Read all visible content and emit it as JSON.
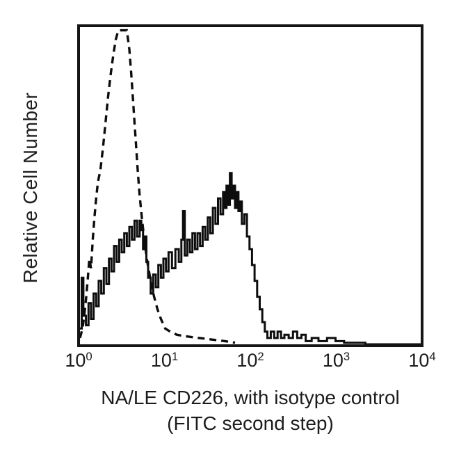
{
  "figure": {
    "y_axis_label": "Relative Cell Number",
    "x_axis_title_line1": "NA/LE CD226, with isotype control",
    "x_axis_title_line2": "(FITC second step)",
    "colors": {
      "curve": "#0d0d0d",
      "box_border": "#151515",
      "background": "#ffffff",
      "text": "#1c1c1c"
    }
  },
  "chart_data": {
    "type": "line",
    "subtype": "flow-cytometry-histogram-overlay",
    "title": "",
    "xlabel": "NA/LE CD226, with isotype control (FITC second step)",
    "ylabel": "Relative Cell Number",
    "x_scale": "log10",
    "x_range": [
      1,
      10000
    ],
    "ylim": [
      0,
      100
    ],
    "y_units": "relative cell number (percent of plot height, no ticks shown)",
    "grid": false,
    "legend": "none",
    "x_ticks": [
      {
        "base": "10",
        "exp": "0"
      },
      {
        "base": "10",
        "exp": "1"
      },
      {
        "base": "10",
        "exp": "2"
      },
      {
        "base": "10",
        "exp": "3"
      },
      {
        "base": "10",
        "exp": "4"
      }
    ],
    "series": [
      {
        "name": "isotype control",
        "line_style": "dashed",
        "render": "polyline",
        "peak_x_approx": 3,
        "points_log10x_ypct": [
          [
            0.0,
            2
          ],
          [
            0.03,
            5
          ],
          [
            0.05,
            9
          ],
          [
            0.07,
            14
          ],
          [
            0.09,
            20
          ],
          [
            0.11,
            27
          ],
          [
            0.13,
            24
          ],
          [
            0.15,
            33
          ],
          [
            0.17,
            40
          ],
          [
            0.19,
            46
          ],
          [
            0.21,
            51
          ],
          [
            0.24,
            55
          ],
          [
            0.27,
            62
          ],
          [
            0.3,
            70
          ],
          [
            0.33,
            78
          ],
          [
            0.36,
            85
          ],
          [
            0.39,
            91
          ],
          [
            0.42,
            96
          ],
          [
            0.45,
            99
          ],
          [
            0.55,
            99
          ],
          [
            0.58,
            93
          ],
          [
            0.6,
            86
          ],
          [
            0.62,
            78
          ],
          [
            0.64,
            70
          ],
          [
            0.66,
            62
          ],
          [
            0.68,
            54
          ],
          [
            0.7,
            47
          ],
          [
            0.73,
            39
          ],
          [
            0.76,
            32
          ],
          [
            0.79,
            26
          ],
          [
            0.83,
            20
          ],
          [
            0.87,
            15
          ],
          [
            0.91,
            11
          ],
          [
            0.95,
            8
          ],
          [
            1.0,
            5
          ],
          [
            1.06,
            4
          ],
          [
            1.14,
            3
          ],
          [
            1.25,
            2.5
          ],
          [
            1.4,
            2
          ],
          [
            1.55,
            1.5
          ],
          [
            1.7,
            1
          ],
          [
            1.82,
            0.5
          ]
        ]
      },
      {
        "name": "NA/LE CD226 stained (FITC second step)",
        "line_style": "solid",
        "render": "steps",
        "peak_x_approx": 57,
        "points_log10x_ypct": [
          [
            0.0,
            5
          ],
          [
            0.02,
            21
          ],
          [
            0.04,
            9
          ],
          [
            0.07,
            6
          ],
          [
            0.1,
            13
          ],
          [
            0.13,
            8
          ],
          [
            0.16,
            16
          ],
          [
            0.19,
            12
          ],
          [
            0.22,
            20
          ],
          [
            0.25,
            16
          ],
          [
            0.28,
            24
          ],
          [
            0.31,
            19
          ],
          [
            0.34,
            27
          ],
          [
            0.37,
            23
          ],
          [
            0.4,
            31
          ],
          [
            0.43,
            26
          ],
          [
            0.46,
            33
          ],
          [
            0.49,
            29
          ],
          [
            0.52,
            35
          ],
          [
            0.55,
            31
          ],
          [
            0.58,
            37
          ],
          [
            0.61,
            33
          ],
          [
            0.64,
            39
          ],
          [
            0.67,
            34
          ],
          [
            0.7,
            39
          ],
          [
            0.72,
            36
          ],
          [
            0.74,
            30
          ],
          [
            0.76,
            34
          ],
          [
            0.78,
            26
          ],
          [
            0.8,
            21
          ],
          [
            0.83,
            16
          ],
          [
            0.86,
            22
          ],
          [
            0.89,
            18
          ],
          [
            0.92,
            25
          ],
          [
            0.95,
            21
          ],
          [
            0.98,
            27
          ],
          [
            1.01,
            23
          ],
          [
            1.04,
            29
          ],
          [
            1.08,
            24
          ],
          [
            1.12,
            30
          ],
          [
            1.16,
            26
          ],
          [
            1.19,
            33
          ],
          [
            1.21,
            42
          ],
          [
            1.23,
            28
          ],
          [
            1.26,
            33
          ],
          [
            1.29,
            29
          ],
          [
            1.32,
            35
          ],
          [
            1.35,
            30
          ],
          [
            1.38,
            35
          ],
          [
            1.41,
            31
          ],
          [
            1.44,
            37
          ],
          [
            1.47,
            33
          ],
          [
            1.5,
            40
          ],
          [
            1.53,
            35
          ],
          [
            1.56,
            43
          ],
          [
            1.59,
            38
          ],
          [
            1.62,
            46
          ],
          [
            1.65,
            41
          ],
          [
            1.68,
            48
          ],
          [
            1.7,
            43
          ],
          [
            1.72,
            50
          ],
          [
            1.74,
            44
          ],
          [
            1.76,
            54
          ],
          [
            1.78,
            46
          ],
          [
            1.8,
            50
          ],
          [
            1.82,
            43
          ],
          [
            1.84,
            48
          ],
          [
            1.86,
            42
          ],
          [
            1.88,
            45
          ],
          [
            1.9,
            38
          ],
          [
            1.93,
            41
          ],
          [
            1.96,
            34
          ],
          [
            1.99,
            30
          ],
          [
            2.02,
            25
          ],
          [
            2.05,
            20
          ],
          [
            2.08,
            15
          ],
          [
            2.11,
            11
          ],
          [
            2.14,
            7
          ],
          [
            2.17,
            4
          ],
          [
            2.2,
            2
          ],
          [
            2.24,
            4
          ],
          [
            2.28,
            2
          ],
          [
            2.32,
            4
          ],
          [
            2.36,
            2
          ],
          [
            2.4,
            3
          ],
          [
            2.45,
            2
          ],
          [
            2.5,
            4
          ],
          [
            2.55,
            2
          ],
          [
            2.6,
            3
          ],
          [
            2.65,
            1
          ],
          [
            2.72,
            2
          ],
          [
            2.8,
            1
          ],
          [
            2.9,
            2
          ],
          [
            3.0,
            1
          ],
          [
            3.1,
            0.5
          ],
          [
            3.3,
            0.5
          ],
          [
            3.35,
            0
          ],
          [
            4.0,
            0
          ]
        ]
      }
    ]
  }
}
